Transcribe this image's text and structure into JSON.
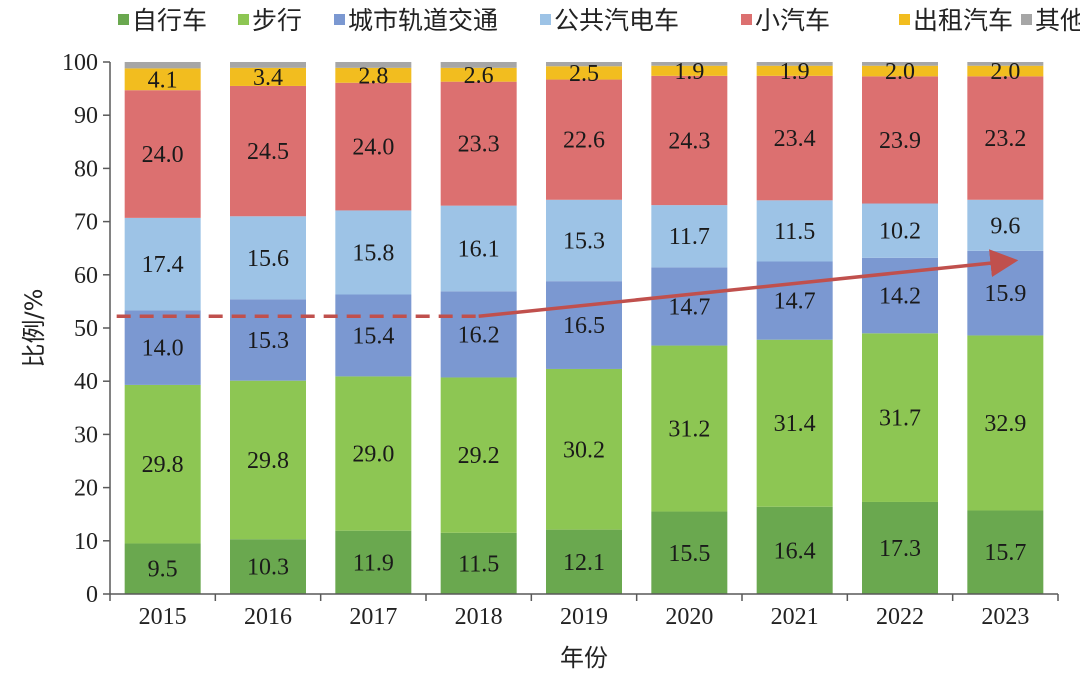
{
  "chart_data": {
    "type": "bar",
    "stacked": true,
    "categories": [
      "2015",
      "2016",
      "2017",
      "2018",
      "2019",
      "2020",
      "2021",
      "2022",
      "2023"
    ],
    "series": [
      {
        "name": "自行车",
        "color": "#6aa84f",
        "values": [
          9.5,
          10.3,
          11.9,
          11.5,
          12.1,
          15.5,
          16.4,
          17.3,
          15.7
        ]
      },
      {
        "name": "步行",
        "color": "#8dc653",
        "values": [
          29.8,
          29.8,
          29.0,
          29.2,
          30.2,
          31.2,
          31.4,
          31.7,
          32.9
        ]
      },
      {
        "name": "城市轨道交通",
        "color": "#7b98d1",
        "values": [
          14.0,
          15.3,
          15.4,
          16.2,
          16.5,
          14.7,
          14.7,
          14.2,
          15.9
        ]
      },
      {
        "name": "公共汽电车",
        "color": "#9dc3e6",
        "values": [
          17.4,
          15.6,
          15.8,
          16.1,
          15.3,
          11.7,
          11.5,
          10.2,
          9.6
        ]
      },
      {
        "name": "小汽车",
        "color": "#dc7070",
        "values": [
          24.0,
          24.5,
          24.0,
          23.3,
          22.6,
          24.3,
          23.4,
          23.9,
          23.2
        ]
      },
      {
        "name": "出租汽车",
        "color": "#f2bd1f",
        "values": [
          4.1,
          3.4,
          2.8,
          2.6,
          2.5,
          1.9,
          1.9,
          2.0,
          2.0
        ]
      },
      {
        "name": "其他",
        "color": "#a6a6a6",
        "values": [
          1.2,
          1.1,
          1.1,
          1.1,
          0.8,
          0.7,
          0.7,
          0.7,
          0.7
        ]
      }
    ],
    "xlabel": "年份",
    "ylabel": "比例/%",
    "ylim": [
      0,
      100
    ],
    "yticks": [
      0,
      10,
      20,
      30,
      40,
      50,
      60,
      70,
      80,
      90,
      100
    ],
    "legend_position": "top",
    "grid": false,
    "trend_line": {
      "color": "#c0504d",
      "dashed_segment": {
        "from_category": "2015",
        "to_category": "2018",
        "value": 52.2
      },
      "solid_arrow": {
        "from_category": "2018",
        "to_category": "2023",
        "from_value": 52.2,
        "to_value": 62.6
      }
    }
  }
}
